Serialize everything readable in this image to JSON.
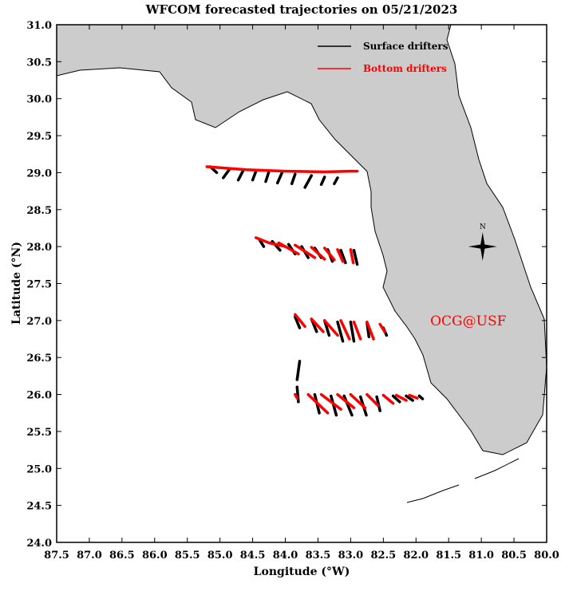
{
  "chart_data": {
    "type": "line",
    "title": "WFCOM forecasted trajectories on 05/21/2023",
    "xlabel": "Longitude (°W)",
    "ylabel": "Latitude (°N)",
    "xlim": [
      87.5,
      80.0
    ],
    "ylim": [
      24.0,
      31.0
    ],
    "x_ticks": [
      "87.5",
      "87.0",
      "86.5",
      "86.0",
      "85.5",
      "85.0",
      "84.5",
      "84.0",
      "83.5",
      "83.0",
      "82.5",
      "82.0",
      "81.5",
      "81.0",
      "80.5",
      "80.0"
    ],
    "y_ticks": [
      "24.0",
      "24.5",
      "25.0",
      "25.5",
      "26.0",
      "26.5",
      "27.0",
      "27.5",
      "28.0",
      "28.5",
      "29.0",
      "29.5",
      "30.0",
      "30.5",
      "31.0"
    ],
    "grid": false,
    "legend_position": "top-right",
    "land_color": "#cccccc",
    "series": [
      {
        "name": "Surface drifters",
        "color": "#000000",
        "tracks": [
          [
            [
              85.15,
              29.08
            ],
            [
              85.05,
              29.0
            ]
          ],
          [
            [
              84.85,
              29.05
            ],
            [
              84.95,
              28.93
            ]
          ],
          [
            [
              84.65,
              29.02
            ],
            [
              84.72,
              28.9
            ]
          ],
          [
            [
              84.45,
              29.02
            ],
            [
              84.5,
              28.9
            ]
          ],
          [
            [
              84.25,
              29.02
            ],
            [
              84.3,
              28.88
            ]
          ],
          [
            [
              84.05,
              29.0
            ],
            [
              84.12,
              28.86
            ]
          ],
          [
            [
              83.85,
              28.98
            ],
            [
              83.9,
              28.85
            ]
          ],
          [
            [
              83.6,
              28.96
            ],
            [
              83.7,
              28.8
            ]
          ],
          [
            [
              83.4,
              28.94
            ],
            [
              83.45,
              28.84
            ]
          ],
          [
            [
              83.2,
              28.93
            ],
            [
              83.25,
              28.85
            ]
          ],
          [
            [
              84.4,
              28.1
            ],
            [
              84.33,
              28.0
            ]
          ],
          [
            [
              84.2,
              28.07
            ],
            [
              84.08,
              27.95
            ]
          ],
          [
            [
              83.95,
              28.03
            ],
            [
              83.85,
              27.9
            ]
          ],
          [
            [
              83.75,
              28.0
            ],
            [
              83.65,
              27.85
            ]
          ],
          [
            [
              83.55,
              27.98
            ],
            [
              83.45,
              27.85
            ]
          ],
          [
            [
              83.35,
              27.96
            ],
            [
              83.28,
              27.8
            ]
          ],
          [
            [
              83.15,
              27.95
            ],
            [
              83.08,
              27.78
            ]
          ],
          [
            [
              82.95,
              27.95
            ],
            [
              82.9,
              27.76
            ]
          ],
          [
            [
              83.85,
              27.05
            ],
            [
              83.78,
              26.9
            ]
          ],
          [
            [
              83.6,
              27.02
            ],
            [
              83.52,
              26.85
            ]
          ],
          [
            [
              83.4,
              27.0
            ],
            [
              83.33,
              26.8
            ]
          ],
          [
            [
              83.2,
              26.98
            ],
            [
              83.12,
              26.72
            ]
          ],
          [
            [
              83.0,
              26.98
            ],
            [
              82.95,
              26.72
            ]
          ],
          [
            [
              82.75,
              26.97
            ],
            [
              82.72,
              26.78
            ]
          ],
          [
            [
              82.5,
              26.9
            ],
            [
              82.45,
              26.8
            ]
          ],
          [
            [
              83.82,
              26.1
            ],
            [
              83.8,
              25.9
            ]
          ],
          [
            [
              83.82,
              26.2
            ],
            [
              83.78,
              26.45
            ]
          ],
          [
            [
              83.55,
              26.0
            ],
            [
              83.48,
              25.75
            ]
          ],
          [
            [
              83.3,
              25.98
            ],
            [
              83.22,
              25.72
            ]
          ],
          [
            [
              83.1,
              25.98
            ],
            [
              82.98,
              25.72
            ]
          ],
          [
            [
              82.85,
              25.97
            ],
            [
              82.76,
              25.72
            ]
          ],
          [
            [
              82.6,
              25.97
            ],
            [
              82.55,
              25.78
            ]
          ],
          [
            [
              82.35,
              25.98
            ],
            [
              82.25,
              25.9
            ]
          ],
          [
            [
              82.15,
              25.98
            ],
            [
              82.05,
              25.92
            ]
          ],
          [
            [
              81.95,
              25.98
            ],
            [
              81.9,
              25.94
            ]
          ]
        ]
      },
      {
        "name": "Bottom drifters",
        "color": "#ff0000",
        "tracks": [
          [
            [
              85.2,
              29.08
            ],
            [
              84.6,
              29.04
            ],
            [
              84.0,
              29.02
            ],
            [
              83.4,
              29.01
            ],
            [
              83.0,
              29.02
            ],
            [
              82.9,
              29.02
            ]
          ],
          [
            [
              84.45,
              28.12
            ],
            [
              84.25,
              28.05
            ],
            [
              84.0,
              28.0
            ]
          ],
          [
            [
              84.1,
              28.05
            ],
            [
              83.8,
              27.9
            ]
          ],
          [
            [
              83.85,
              28.02
            ],
            [
              83.55,
              27.85
            ]
          ],
          [
            [
              83.6,
              27.99
            ],
            [
              83.4,
              27.83
            ]
          ],
          [
            [
              83.4,
              27.98
            ],
            [
              83.25,
              27.82
            ]
          ],
          [
            [
              83.2,
              27.96
            ],
            [
              83.12,
              27.8
            ]
          ],
          [
            [
              83.0,
              27.96
            ],
            [
              82.96,
              27.78
            ]
          ],
          [
            [
              83.85,
              27.08
            ],
            [
              83.7,
              26.92
            ]
          ],
          [
            [
              83.6,
              27.02
            ],
            [
              83.42,
              26.85
            ]
          ],
          [
            [
              83.4,
              27.0
            ],
            [
              83.2,
              26.8
            ]
          ],
          [
            [
              83.15,
              27.0
            ],
            [
              83.02,
              26.75
            ]
          ],
          [
            [
              82.95,
              26.98
            ],
            [
              82.85,
              26.75
            ]
          ],
          [
            [
              82.75,
              26.98
            ],
            [
              82.65,
              26.75
            ]
          ],
          [
            [
              82.55,
              26.95
            ],
            [
              82.48,
              26.85
            ]
          ],
          [
            [
              83.85,
              26.0
            ],
            [
              83.82,
              25.95
            ]
          ],
          [
            [
              83.65,
              26.0
            ],
            [
              83.35,
              25.75
            ]
          ],
          [
            [
              83.45,
              26.0
            ],
            [
              83.15,
              25.8
            ]
          ],
          [
            [
              83.2,
              26.0
            ],
            [
              82.95,
              25.82
            ]
          ],
          [
            [
              83.0,
              26.0
            ],
            [
              82.78,
              25.82
            ]
          ],
          [
            [
              82.75,
              26.0
            ],
            [
              82.58,
              25.85
            ]
          ],
          [
            [
              82.5,
              25.99
            ],
            [
              82.35,
              25.88
            ]
          ],
          [
            [
              82.3,
              25.99
            ],
            [
              82.15,
              25.92
            ]
          ],
          [
            [
              82.1,
              25.99
            ],
            [
              81.98,
              25.95
            ]
          ]
        ]
      }
    ],
    "annotations": [
      {
        "text": "OCG@USF",
        "lon": 81.2,
        "lat": 27.0,
        "color": "#ff0000"
      }
    ],
    "compass_label": "N",
    "compass_lonlat": [
      80.98,
      28.0
    ]
  }
}
